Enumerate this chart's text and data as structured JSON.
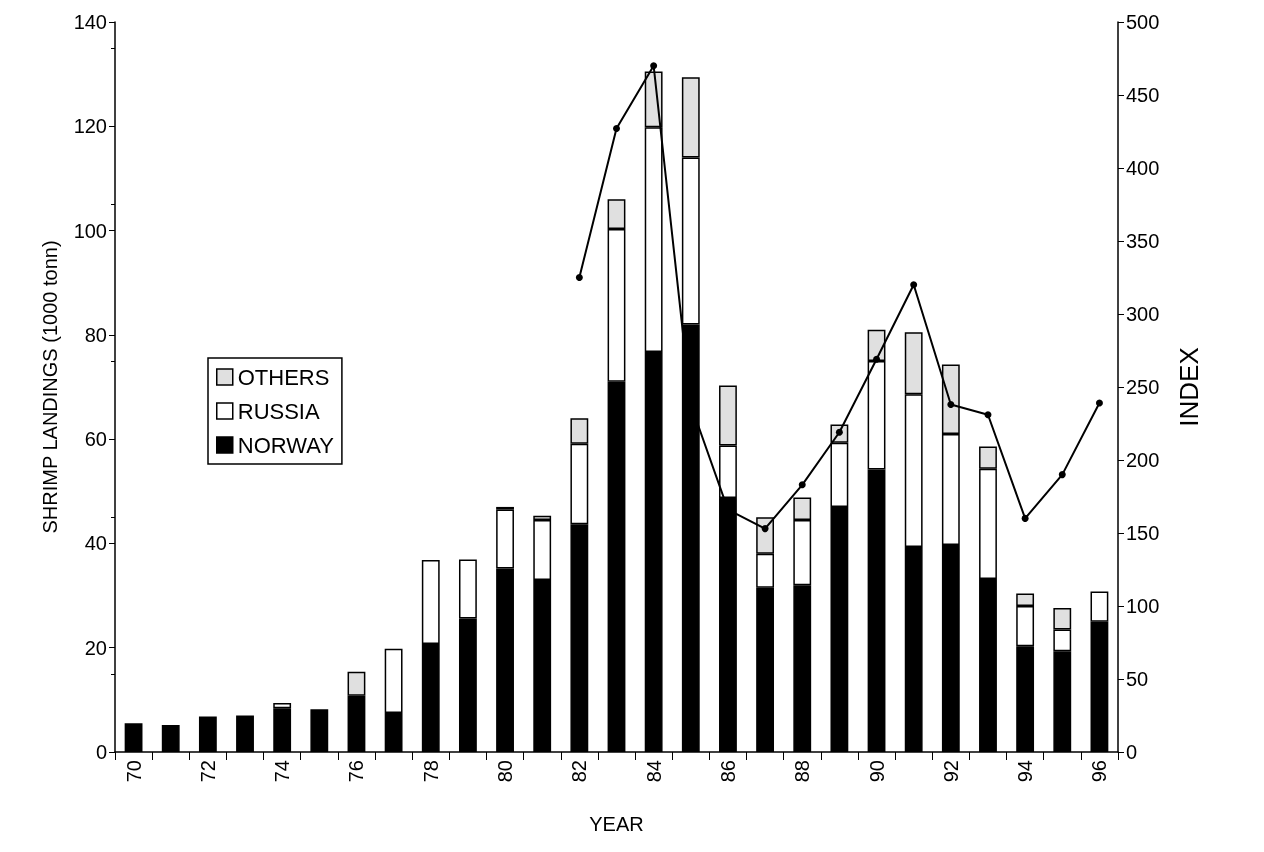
{
  "chart_data": {
    "type": "bar",
    "stacked": true,
    "xlabel": "YEAR",
    "ylabel": "SHRIMP LANDINGS (1000 tonn)",
    "y2label": "INDEX",
    "categories": [
      "70",
      null,
      "72",
      null,
      "74",
      null,
      "76",
      null,
      "78",
      null,
      "80",
      null,
      "82",
      null,
      "84",
      null,
      "86",
      null,
      "88",
      null,
      "90",
      null,
      "92",
      null,
      "94",
      null,
      "96"
    ],
    "series": [
      {
        "name": "NORWAY",
        "color": "#000000",
        "values": [
          5.5,
          5.2,
          6.8,
          7.0,
          8.4,
          8.2,
          10.8,
          7.5,
          20.7,
          25.6,
          35.2,
          33,
          43.7,
          71,
          76.7,
          82,
          48.7,
          31.5,
          32,
          47,
          54.2,
          39.3,
          39.7,
          33.2,
          20.3,
          19.3,
          25
        ]
      },
      {
        "name": "RUSSIA",
        "color": "#ffffff",
        "values": [
          null,
          null,
          null,
          null,
          1.0,
          null,
          null,
          12.3,
          16.1,
          11.3,
          11.3,
          11.5,
          15.4,
          29.3,
          43.1,
          32,
          10.1,
          6.5,
          12.5,
          12.3,
          20.8,
          29.3,
          21.3,
          21.1,
          7.7,
          4.2,
          5.8
        ]
      },
      {
        "name": "OTHERS",
        "color": "#e0e0e0",
        "values": [
          null,
          null,
          null,
          null,
          null,
          null,
          4.6,
          null,
          null,
          null,
          0.5,
          0.8,
          4.9,
          5.7,
          10.7,
          15.4,
          11.5,
          7,
          4.3,
          3.5,
          6,
          11.9,
          13.3,
          4.3,
          2.4,
          4.1,
          null
        ]
      },
      {
        "type": "line",
        "axis": "y2",
        "color": "#000000",
        "values": [
          null,
          null,
          null,
          null,
          null,
          null,
          null,
          null,
          null,
          null,
          null,
          null,
          325,
          427,
          470,
          238,
          166,
          153,
          183,
          219,
          269,
          320,
          238,
          231,
          160,
          190,
          239
        ]
      }
    ],
    "ylim": [
      0,
      140
    ],
    "yticks": [
      0,
      20,
      40,
      60,
      80,
      100,
      120,
      140
    ],
    "y2lim": [
      0,
      500
    ],
    "y2ticks": [
      0,
      50,
      100,
      150,
      200,
      250,
      300,
      350,
      400,
      450,
      500
    ],
    "marker": "circle",
    "legend": "left",
    "grid": false
  }
}
